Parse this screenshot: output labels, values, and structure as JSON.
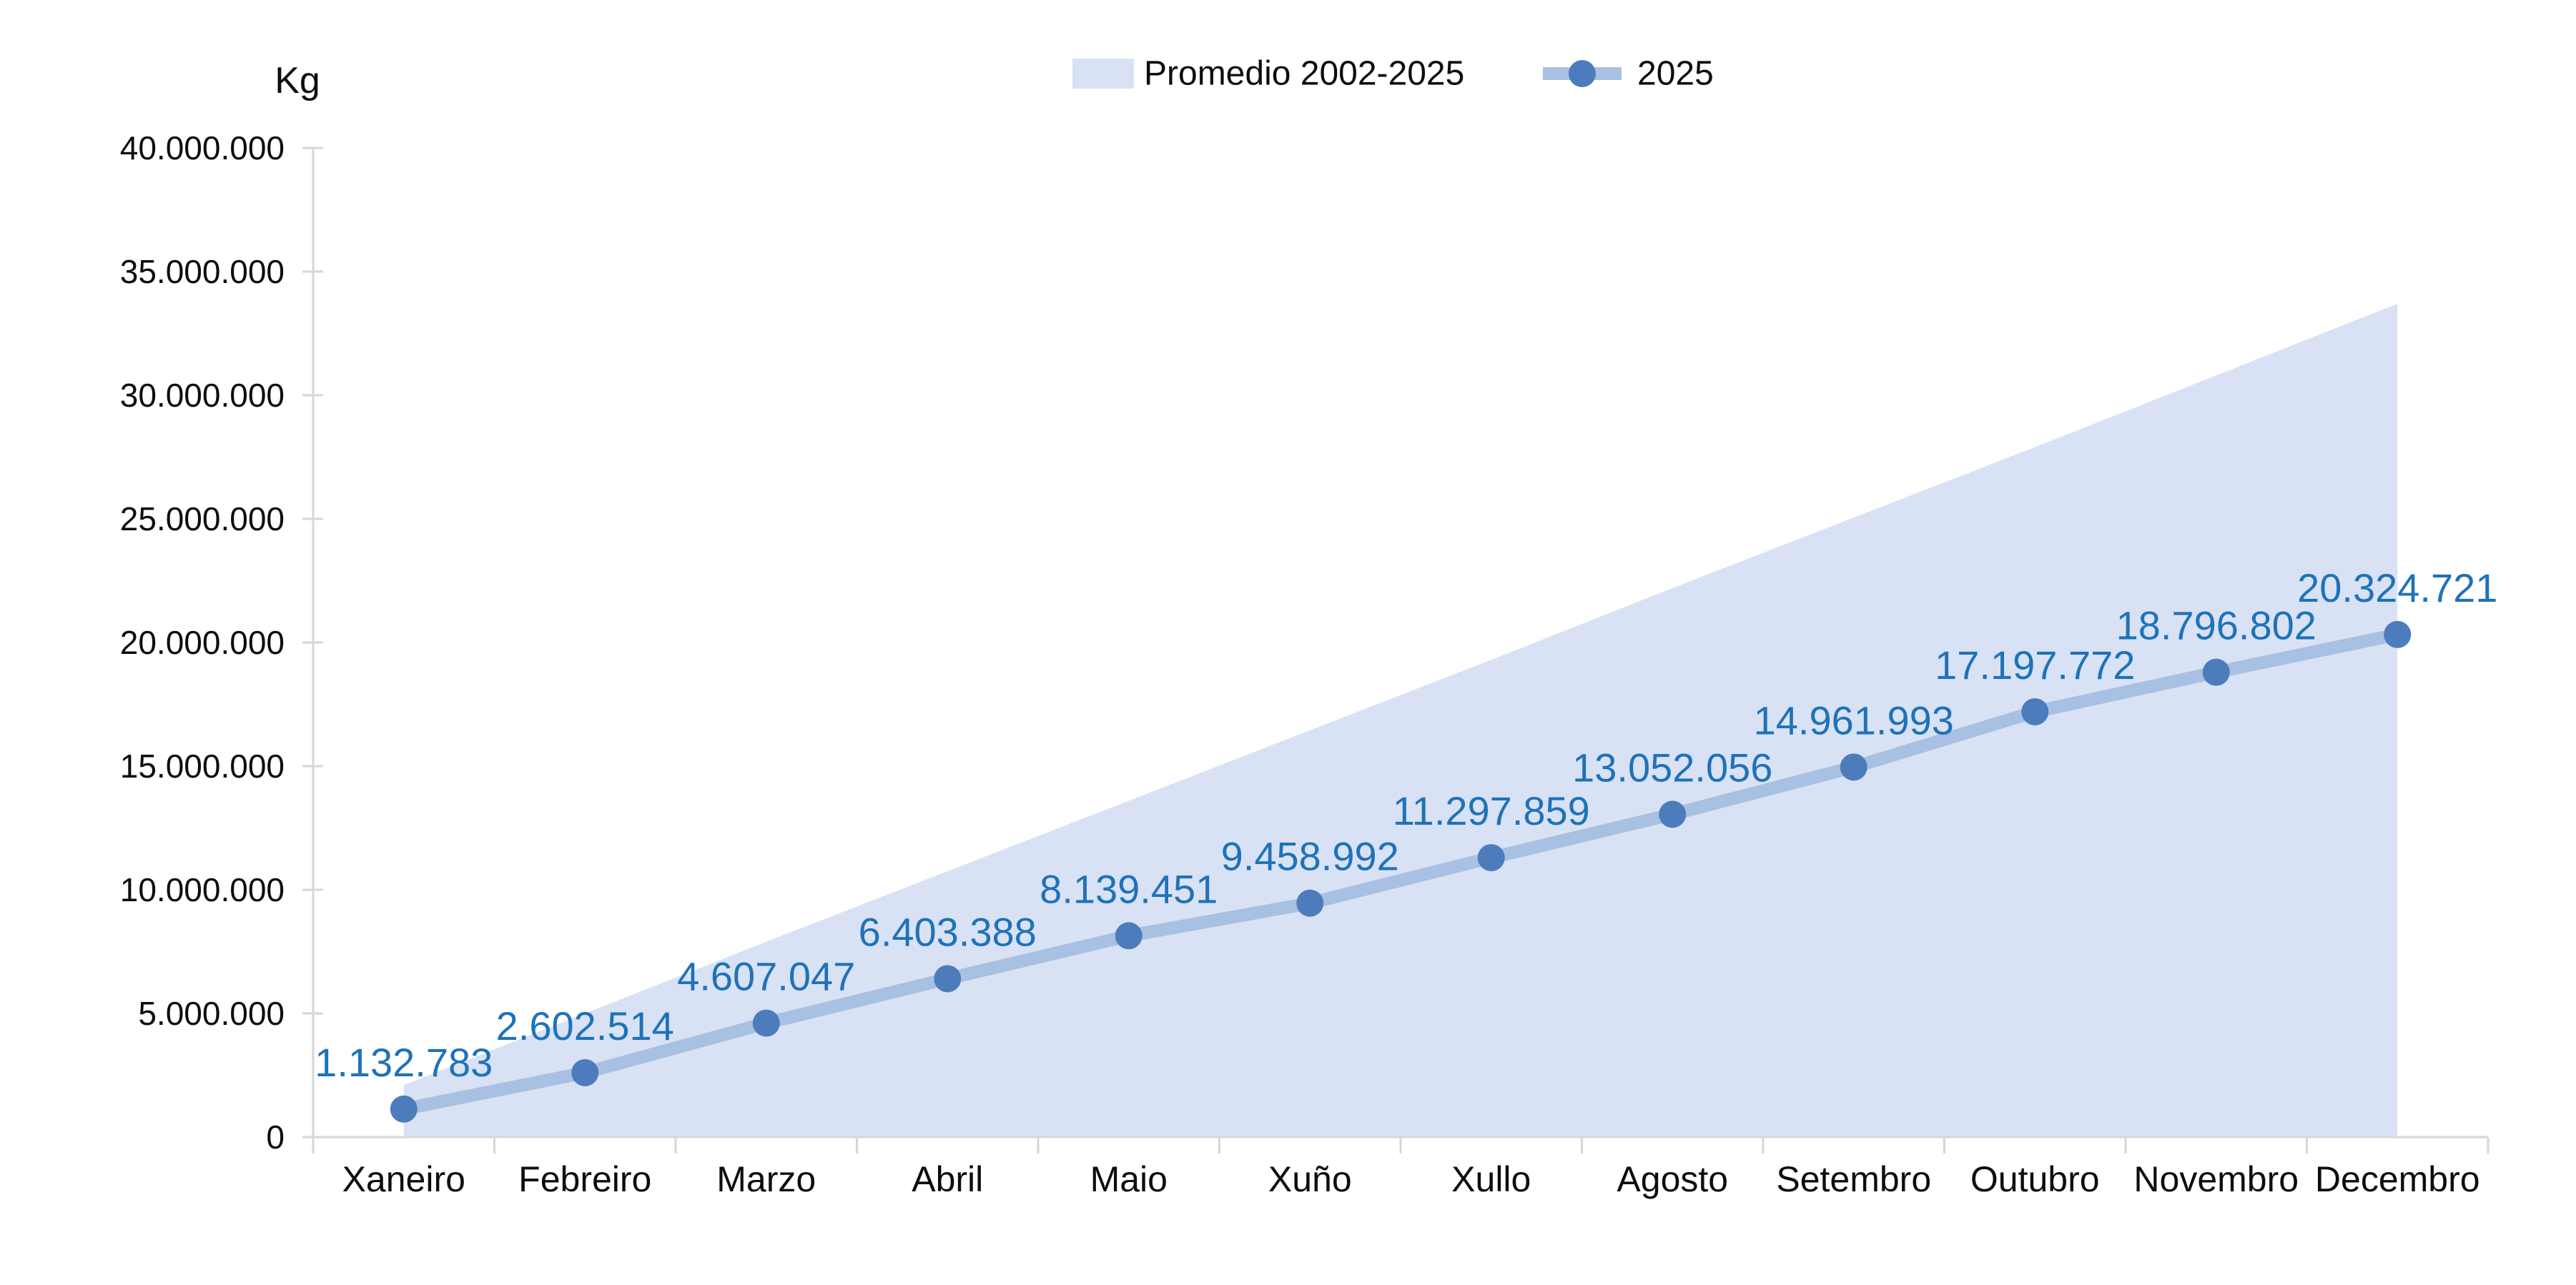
{
  "chart_data": {
    "type": "line",
    "title": "",
    "ylabel": "Kg",
    "xlabel": "",
    "legend_position": "top",
    "grid": false,
    "categories": [
      "Xaneiro",
      "Febreiro",
      "Marzo",
      "Abril",
      "Maio",
      "Xuño",
      "Xullo",
      "Agosto",
      "Setembro",
      "Outubro",
      "Novembro",
      "Decembro"
    ],
    "y_axis": {
      "min": 0,
      "max": 40000000,
      "step": 5000000,
      "tick_labels": [
        "0",
        "5.000.000",
        "10.000.000",
        "15.000.000",
        "20.000.000",
        "25.000.000",
        "30.000.000",
        "35.000.000",
        "40.000.000"
      ]
    },
    "series": [
      {
        "name": "Promedio 2002-2025",
        "type": "area",
        "color": "#d8e2f4",
        "values_estimated_from_pixels": true,
        "values": [
          2100000,
          5000000,
          7900000,
          10750000,
          13600000,
          16450000,
          19300000,
          22200000,
          25050000,
          27900000,
          30800000,
          33700000
        ]
      },
      {
        "name": "2025",
        "type": "line",
        "color": "#a8c0e2",
        "marker_color": "#4d7cbc",
        "label_color": "#1f72b8",
        "values": [
          1132783,
          2602514,
          4607047,
          6403388,
          8139451,
          9458992,
          11297859,
          13052056,
          14961993,
          17197772,
          18796802,
          20324721
        ],
        "labels": [
          "1.132.783",
          "2.602.514",
          "4.607.047",
          "6.403.388",
          "8.139.451",
          "9.458.992",
          "11.297.859",
          "13.052.056",
          "14.961.993",
          "17.197.772",
          "18.796.802",
          "20.324.721"
        ]
      }
    ],
    "colors": {
      "axis_line": "#d6d6d6",
      "axis_text": "#0d0d0d",
      "background": "#ffffff"
    }
  }
}
